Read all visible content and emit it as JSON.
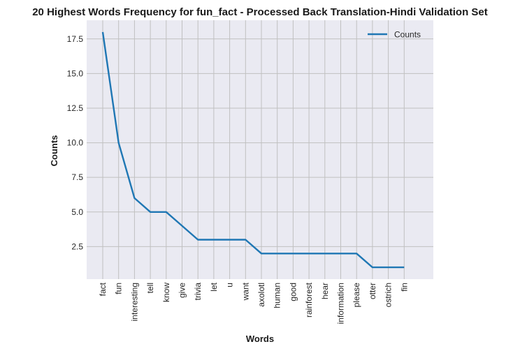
{
  "chart_data": {
    "type": "line",
    "title": "20 Highest Words Frequency for fun_fact - Processed Back Translation-Hindi Validation Set",
    "xlabel": "Words",
    "ylabel": "Counts",
    "categories": [
      "fact",
      "fun",
      "interesting",
      "tell",
      "know",
      "give",
      "trivia",
      "let",
      "u",
      "want",
      "axolotl",
      "human",
      "good",
      "rainforest",
      "hear",
      "information",
      "please",
      "otter",
      "ostrich",
      "fin"
    ],
    "series": [
      {
        "name": "Counts",
        "values": [
          18,
          10,
          6,
          5,
          5,
          4,
          3,
          3,
          3,
          3,
          2,
          2,
          2,
          2,
          2,
          2,
          2,
          1,
          1,
          1
        ]
      }
    ],
    "yticks": [
      "2.5",
      "5.0",
      "7.5",
      "10.0",
      "12.5",
      "15.0",
      "17.5"
    ],
    "ylim": [
      0.15,
      18.85
    ],
    "grid": true,
    "legend_position": "upper right",
    "colors": {
      "line": "#1f77b4",
      "plot_background": "#eaeaf2",
      "grid": "#c0c0c0"
    }
  }
}
